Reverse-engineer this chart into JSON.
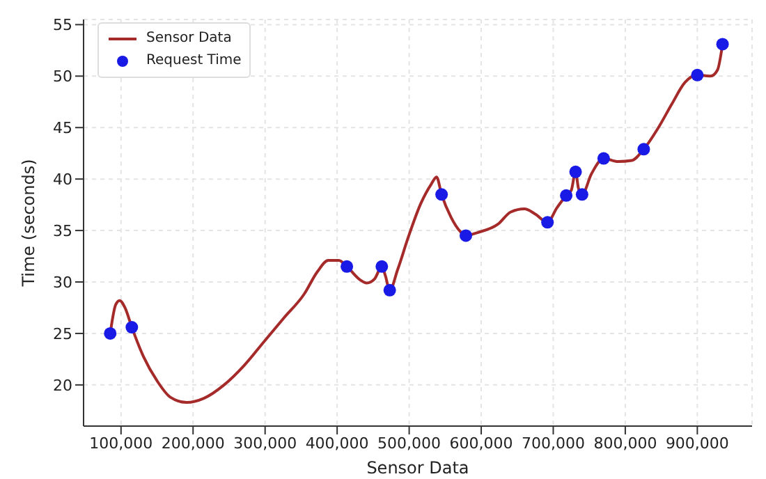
{
  "chart_data": {
    "type": "line",
    "xlabel": "Sensor Data",
    "ylabel": "Time (seconds)",
    "xlim": [
      48000,
      976000
    ],
    "ylim": [
      16,
      55.5
    ],
    "xticks": [
      {
        "value": 100000,
        "label": "100,000"
      },
      {
        "value": 200000,
        "label": "200,000"
      },
      {
        "value": 300000,
        "label": "300,000"
      },
      {
        "value": 400000,
        "label": "400,000"
      },
      {
        "value": 500000,
        "label": "500,000"
      },
      {
        "value": 600000,
        "label": "600,000"
      },
      {
        "value": 700000,
        "label": "700,000"
      },
      {
        "value": 800000,
        "label": "800,000"
      },
      {
        "value": 900000,
        "label": "900,000"
      }
    ],
    "yticks": [
      20,
      25,
      30,
      35,
      40,
      45,
      50,
      55
    ],
    "grid": true,
    "legend": "top left",
    "series": [
      {
        "name": "Sensor Data",
        "type": "line",
        "color": "#a52a2a",
        "marker": "none",
        "x": [
          85000,
          92600,
          98000,
          105500,
          115000,
          131500,
          150000,
          168600,
          191000,
          215000,
          243000,
          271000,
          298500,
          326000,
          354000,
          372600,
          387700,
          402400,
          413500,
          432000,
          441000,
          452000,
          462000,
          467000,
          473000,
          484000,
          499000,
          516000,
          530600,
          538000,
          545000,
          558000,
          571000,
          578700,
          595000,
          623000,
          641000,
          660000,
          675000,
          692000,
          705000,
          718000,
          725000,
          731000,
          735000,
          740000,
          753000,
          770000,
          790000,
          809000,
          825600,
          846000,
          864700,
          883000,
          900000,
          918500,
          928000,
          935000
        ],
        "values": [
          25.0,
          27.8,
          28.2,
          27.5,
          25.6,
          22.7,
          20.4,
          18.8,
          18.3,
          18.7,
          20.0,
          21.9,
          24.2,
          26.5,
          28.8,
          31.0,
          32.1,
          32.1,
          31.5,
          30.2,
          29.9,
          30.3,
          31.5,
          30.6,
          29.2,
          31.2,
          34.4,
          37.6,
          39.5,
          40.2,
          38.5,
          36.3,
          34.9,
          34.5,
          34.8,
          35.6,
          36.8,
          37.1,
          36.6,
          35.8,
          37.2,
          38.4,
          38.9,
          40.7,
          39.1,
          38.5,
          40.5,
          42.0,
          41.7,
          41.8,
          42.9,
          45.0,
          47.3,
          49.4,
          50.1,
          50.0,
          50.6,
          53.1
        ]
      },
      {
        "name": "Request Time",
        "type": "scatter",
        "color": "#1a1ae6",
        "marker": "circle",
        "x": [
          85000,
          115000,
          413500,
          462000,
          473000,
          545000,
          578700,
          692000,
          718000,
          731000,
          740000,
          770000,
          825600,
          900000,
          935000
        ],
        "values": [
          25.0,
          25.6,
          31.5,
          31.5,
          29.2,
          38.5,
          34.5,
          35.8,
          38.4,
          40.7,
          38.5,
          42.0,
          42.9,
          50.1,
          53.1
        ]
      }
    ]
  }
}
